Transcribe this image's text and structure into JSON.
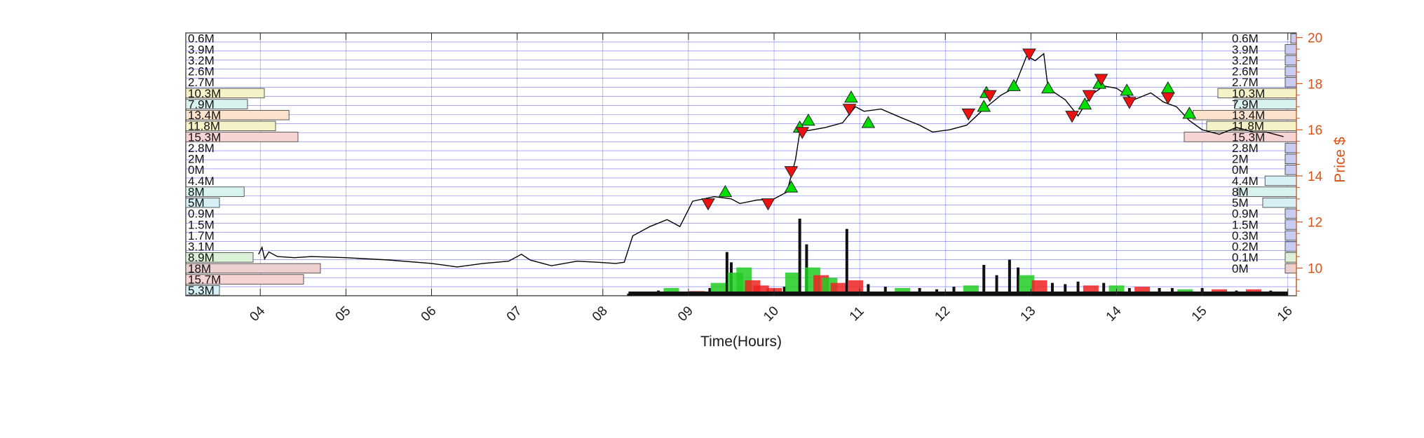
{
  "chart_data": {
    "type": "line",
    "title": "",
    "xlabel": "Time(Hours)",
    "ylabel_right": "Price $",
    "x_ticks": [
      "04",
      "05",
      "06",
      "07",
      "08",
      "09",
      "10",
      "11",
      "12",
      "13",
      "14",
      "15",
      "16"
    ],
    "xlim": [
      3.13,
      16.1
    ],
    "y_right_ticks": [
      10,
      12,
      14,
      16,
      18,
      20
    ],
    "y_right_lim": [
      8.8,
      20.2
    ],
    "grid": true,
    "colors": {
      "price_line": "#000000",
      "buy_marker": "#00dd00",
      "sell_marker": "#ee1111",
      "grid": "#4444ee",
      "right_axis": "#d95319"
    },
    "price_series": [
      [
        3.98,
        10.6
      ],
      [
        4.02,
        10.9
      ],
      [
        4.05,
        10.4
      ],
      [
        4.1,
        10.7
      ],
      [
        4.2,
        10.5
      ],
      [
        4.4,
        10.45
      ],
      [
        4.6,
        10.5
      ],
      [
        5.0,
        10.45
      ],
      [
        5.5,
        10.35
      ],
      [
        6.0,
        10.2
      ],
      [
        6.3,
        10.05
      ],
      [
        6.6,
        10.2
      ],
      [
        6.9,
        10.3
      ],
      [
        7.05,
        10.6
      ],
      [
        7.15,
        10.35
      ],
      [
        7.4,
        10.1
      ],
      [
        7.7,
        10.3
      ],
      [
        7.95,
        10.25
      ],
      [
        8.15,
        10.2
      ],
      [
        8.25,
        10.25
      ],
      [
        8.35,
        11.4
      ],
      [
        8.55,
        11.8
      ],
      [
        8.75,
        12.1
      ],
      [
        8.9,
        11.8
      ],
      [
        9.05,
        12.9
      ],
      [
        9.3,
        13.1
      ],
      [
        9.5,
        13.0
      ],
      [
        9.6,
        12.8
      ],
      [
        9.8,
        12.95
      ],
      [
        10.0,
        13.0
      ],
      [
        10.15,
        13.3
      ],
      [
        10.25,
        14.7
      ],
      [
        10.3,
        15.9
      ],
      [
        10.45,
        16.0
      ],
      [
        10.6,
        16.1
      ],
      [
        10.8,
        16.3
      ],
      [
        10.95,
        17.0
      ],
      [
        11.05,
        16.8
      ],
      [
        11.25,
        16.9
      ],
      [
        11.5,
        16.5
      ],
      [
        11.7,
        16.2
      ],
      [
        11.85,
        15.9
      ],
      [
        12.05,
        16.0
      ],
      [
        12.25,
        16.2
      ],
      [
        12.45,
        16.9
      ],
      [
        12.65,
        17.5
      ],
      [
        12.8,
        17.8
      ],
      [
        12.95,
        19.2
      ],
      [
        13.05,
        19.0
      ],
      [
        13.15,
        19.3
      ],
      [
        13.2,
        17.8
      ],
      [
        13.4,
        17.3
      ],
      [
        13.55,
        16.6
      ],
      [
        13.7,
        17.5
      ],
      [
        13.85,
        17.9
      ],
      [
        14.0,
        17.8
      ],
      [
        14.2,
        17.3
      ],
      [
        14.4,
        17.6
      ],
      [
        14.55,
        17.2
      ],
      [
        14.7,
        17.0
      ],
      [
        14.85,
        16.4
      ],
      [
        15.0,
        16.0
      ],
      [
        15.2,
        15.8
      ],
      [
        15.4,
        16.1
      ],
      [
        15.6,
        15.9
      ],
      [
        15.75,
        15.9
      ],
      [
        15.95,
        15.7
      ]
    ],
    "buy_markers": [
      [
        9.43,
        13.3
      ],
      [
        10.2,
        13.5
      ],
      [
        10.3,
        16.1
      ],
      [
        10.4,
        16.4
      ],
      [
        10.9,
        17.4
      ],
      [
        11.1,
        16.3
      ],
      [
        12.45,
        17.0
      ],
      [
        12.48,
        17.6
      ],
      [
        12.8,
        17.9
      ],
      [
        13.2,
        17.8
      ],
      [
        13.63,
        17.1
      ],
      [
        13.8,
        18.0
      ],
      [
        14.12,
        17.7
      ],
      [
        14.6,
        17.8
      ],
      [
        14.85,
        16.7
      ]
    ],
    "sell_markers": [
      [
        9.23,
        12.8
      ],
      [
        9.93,
        12.8
      ],
      [
        10.2,
        14.2
      ],
      [
        10.33,
        15.9
      ],
      [
        10.88,
        16.9
      ],
      [
        12.27,
        16.7
      ],
      [
        12.52,
        17.5
      ],
      [
        12.98,
        19.3
      ],
      [
        13.48,
        16.6
      ],
      [
        13.68,
        17.5
      ],
      [
        13.82,
        18.2
      ],
      [
        14.15,
        17.2
      ],
      [
        14.6,
        17.4
      ]
    ],
    "volume_bars": [
      [
        8.3,
        0.08,
        "black"
      ],
      [
        8.5,
        0.15,
        "black"
      ],
      [
        8.65,
        0.2,
        "black"
      ],
      [
        8.8,
        0.3,
        "green"
      ],
      [
        8.95,
        0.15,
        "black"
      ],
      [
        9.1,
        0.18,
        "red"
      ],
      [
        9.25,
        0.3,
        "black"
      ],
      [
        9.35,
        0.5,
        "green"
      ],
      [
        9.45,
        1.7,
        "black"
      ],
      [
        9.5,
        1.3,
        "black"
      ],
      [
        9.55,
        0.9,
        "green"
      ],
      [
        9.65,
        1.1,
        "green"
      ],
      [
        9.75,
        0.6,
        "red"
      ],
      [
        9.85,
        0.4,
        "red"
      ],
      [
        10.0,
        0.3,
        "red"
      ],
      [
        10.12,
        0.35,
        "black"
      ],
      [
        10.22,
        0.9,
        "green"
      ],
      [
        10.3,
        3.0,
        "black"
      ],
      [
        10.38,
        2.0,
        "black"
      ],
      [
        10.45,
        1.1,
        "green"
      ],
      [
        10.55,
        0.8,
        "red"
      ],
      [
        10.65,
        0.7,
        "green"
      ],
      [
        10.75,
        0.5,
        "red"
      ],
      [
        10.85,
        2.6,
        "black"
      ],
      [
        10.95,
        0.6,
        "red"
      ],
      [
        11.1,
        0.45,
        "black"
      ],
      [
        11.3,
        0.35,
        "black"
      ],
      [
        11.5,
        0.3,
        "green"
      ],
      [
        11.7,
        0.3,
        "black"
      ],
      [
        11.9,
        0.25,
        "black"
      ],
      [
        12.1,
        0.35,
        "black"
      ],
      [
        12.3,
        0.4,
        "green"
      ],
      [
        12.45,
        1.2,
        "black"
      ],
      [
        12.6,
        0.8,
        "black"
      ],
      [
        12.75,
        1.4,
        "black"
      ],
      [
        12.85,
        1.1,
        "black"
      ],
      [
        12.95,
        0.8,
        "green"
      ],
      [
        13.1,
        0.6,
        "red"
      ],
      [
        13.25,
        0.5,
        "black"
      ],
      [
        13.4,
        0.45,
        "black"
      ],
      [
        13.55,
        0.55,
        "black"
      ],
      [
        13.7,
        0.4,
        "red"
      ],
      [
        13.85,
        0.5,
        "black"
      ],
      [
        14.0,
        0.4,
        "green"
      ],
      [
        14.15,
        0.3,
        "black"
      ],
      [
        14.3,
        0.35,
        "red"
      ],
      [
        14.5,
        0.3,
        "black"
      ],
      [
        14.65,
        0.3,
        "black"
      ],
      [
        14.8,
        0.25,
        "green"
      ],
      [
        15.0,
        0.3,
        "black"
      ],
      [
        15.2,
        0.25,
        "red"
      ],
      [
        15.4,
        0.2,
        "black"
      ],
      [
        15.6,
        0.25,
        "red"
      ],
      [
        15.8,
        0.2,
        "black"
      ],
      [
        15.95,
        0.15,
        "black"
      ]
    ],
    "volume_profile": [
      {
        "label": "0.6M",
        "price": 19.9,
        "left_frac": 0.0,
        "right_frac": 0.05,
        "color": "#c8ccf0"
      },
      {
        "label": "3.9M",
        "price": 19.55,
        "left_frac": 0.0,
        "right_frac": 0.1,
        "color": "#c8ccf0"
      },
      {
        "label": "3.2M",
        "price": 19.2,
        "left_frac": 0.0,
        "right_frac": 0.1,
        "color": "#c8ccf0"
      },
      {
        "label": "2.6M",
        "price": 18.85,
        "left_frac": 0.0,
        "right_frac": 0.1,
        "color": "#c8ccf0"
      },
      {
        "label": "2.7M",
        "price": 18.45,
        "left_frac": 0.0,
        "right_frac": 0.1,
        "color": "#c8ccf0"
      },
      {
        "label": "10.3M",
        "price": 17.95,
        "left_frac": 0.7,
        "right_frac": 0.7,
        "color": "#f6f2c8"
      },
      {
        "label": "7.9M",
        "price": 17.5,
        "left_frac": 0.55,
        "right_frac": 0.55,
        "color": "#d8f2ee"
      },
      {
        "label": "13.4M",
        "price": 16.95,
        "left_frac": 0.92,
        "right_frac": 0.92,
        "color": "#fbe2cc"
      },
      {
        "label": "11.8M",
        "price": 16.5,
        "left_frac": 0.8,
        "right_frac": 0.8,
        "color": "#f6f2c8"
      },
      {
        "label": "15.3M",
        "price": 15.95,
        "left_frac": 1.0,
        "right_frac": 1.0,
        "color": "#f7d4d4"
      },
      {
        "label": "2.8M",
        "price": 15.45,
        "left_frac": 0.0,
        "right_frac": 0.1,
        "color": "#c8ccf0"
      },
      {
        "label": "2M",
        "price": 15.0,
        "left_frac": 0.0,
        "right_frac": 0.1,
        "color": "#c8ccf0"
      },
      {
        "label": "0M",
        "price": 14.2,
        "left_frac": 0.0,
        "right_frac": 0.1,
        "color": "#c8ccf0"
      },
      {
        "label": "4.4M",
        "price": 13.45,
        "left_frac": 0.0,
        "right_frac": 0.28,
        "color": "#d6f0f6"
      },
      {
        "label": "8M",
        "price": 13.05,
        "left_frac": 0.52,
        "right_frac": 0.52,
        "color": "#d8f2ee"
      },
      {
        "label": "5M",
        "price": 12.6,
        "left_frac": 0.3,
        "right_frac": 0.3,
        "color": "#d6f0f6"
      },
      {
        "label": "0.9M",
        "price": 12.2,
        "left_frac": 0.0,
        "right_frac": 0.1,
        "color": "#c8ccf0"
      },
      {
        "label": "1.5M",
        "price": 11.75,
        "left_frac": 0.0,
        "right_frac": 0.1,
        "color": "#c8ccf0"
      },
      {
        "label": "1.7M",
        "price": 11.35,
        "left_frac": 0.0,
        "right_frac": 0.1,
        "color": "#c8ccf0"
      },
      {
        "label": "3.1M",
        "price": 10.9,
        "left_frac": 0.0,
        "right_frac": 0.1,
        "color": "#c8ccf0"
      },
      {
        "label": "8.9M",
        "price": 10.45,
        "left_frac": 0.6,
        "right_frac": 0.1,
        "color": "#dcf2d8"
      },
      {
        "label": "18M",
        "price": 10.0,
        "left_frac": 1.2,
        "right_frac": 0.1,
        "color": "#ecd0d0"
      },
      {
        "label": "15.7M",
        "price": 9.55,
        "left_frac": 1.05,
        "right_frac": 0.0,
        "color": "#f7d4d4"
      },
      {
        "label": "5.3M",
        "price": 9.1,
        "left_frac": 0.3,
        "right_frac": 0.0,
        "color": "#d6f0f6"
      }
    ],
    "volume_profile_right_labels": [
      "0.6M",
      "3.9M",
      "3.2M",
      "2.6M",
      "2.7M",
      "10.3M",
      "7.9M",
      "13.4M",
      "11.8M",
      "15.3M",
      "2.8M",
      "2M",
      "0M",
      "4.4M",
      "8M",
      "5M",
      "0.9M",
      "1.5M",
      "0.3M",
      "0.2M",
      "0.1M",
      "0M"
    ]
  }
}
